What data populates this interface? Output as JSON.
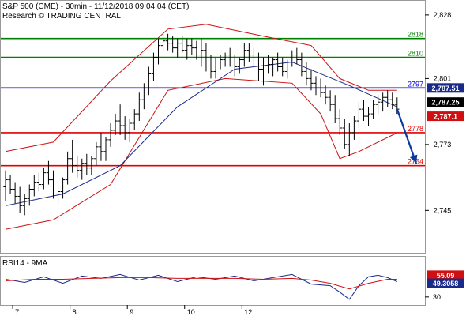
{
  "header": {
    "title": "S&P 500 (CME) - 30min - 11/12/2018 09:04:04 (CET)",
    "subtitle": "Research © TRADING CENTRAL"
  },
  "colors": {
    "support_resistance_red": "#e00000",
    "level_green": "#008000",
    "level_blue": "#0000dd",
    "moving_average_blue": "#1a2a8a",
    "bands_red": "#d01010",
    "price_bars": "#000000",
    "forecast_arrow": "#0a3aa0",
    "rsi_line": "#1a2a8a",
    "rsi_signal": "#d01010"
  },
  "chart_data": [
    {
      "type": "ohlc",
      "x_ticks": [
        "7",
        "8",
        "9",
        "10",
        "12"
      ],
      "y_ticks": [
        "2,828",
        "2,801",
        "2,773",
        "2,745"
      ],
      "ylim": [
        2727,
        2834
      ],
      "bars_per_day": 12,
      "ohlc_bars": [
        [
          2755,
          2762,
          2749,
          2758
        ],
        [
          2758,
          2760,
          2752,
          2754
        ],
        [
          2754,
          2757,
          2748,
          2751
        ],
        [
          2751,
          2755,
          2744,
          2747
        ],
        [
          2747,
          2752,
          2743,
          2750
        ],
        [
          2750,
          2756,
          2747,
          2754
        ],
        [
          2754,
          2760,
          2751,
          2757
        ],
        [
          2757,
          2761,
          2753,
          2756
        ],
        [
          2756,
          2763,
          2754,
          2761
        ],
        [
          2761,
          2766,
          2756,
          2758
        ],
        [
          2758,
          2762,
          2750,
          2752
        ],
        [
          2752,
          2756,
          2747,
          2753
        ],
        [
          2753,
          2759,
          2750,
          2758
        ],
        [
          2758,
          2770,
          2756,
          2767
        ],
        [
          2767,
          2775,
          2761,
          2764
        ],
        [
          2764,
          2768,
          2759,
          2762
        ],
        [
          2762,
          2767,
          2758,
          2765
        ],
        [
          2765,
          2769,
          2760,
          2763
        ],
        [
          2763,
          2768,
          2760,
          2767
        ],
        [
          2767,
          2774,
          2764,
          2772
        ],
        [
          2772,
          2778,
          2766,
          2770
        ],
        [
          2770,
          2776,
          2766,
          2775
        ],
        [
          2775,
          2782,
          2772,
          2779
        ],
        [
          2779,
          2786,
          2777,
          2783
        ],
        [
          2783,
          2790,
          2777,
          2781
        ],
        [
          2781,
          2785,
          2775,
          2778
        ],
        [
          2778,
          2784,
          2774,
          2782
        ],
        [
          2782,
          2788,
          2779,
          2786
        ],
        [
          2786,
          2795,
          2783,
          2792
        ],
        [
          2792,
          2799,
          2788,
          2797
        ],
        [
          2797,
          2806,
          2794,
          2803
        ],
        [
          2803,
          2812,
          2800,
          2810
        ],
        [
          2810,
          2818,
          2807,
          2815
        ],
        [
          2815,
          2820,
          2812,
          2817
        ],
        [
          2817,
          2820,
          2813,
          2816
        ],
        [
          2816,
          2819,
          2812,
          2814
        ],
        [
          2814,
          2818,
          2810,
          2816
        ],
        [
          2816,
          2819,
          2812,
          2813
        ],
        [
          2813,
          2818,
          2809,
          2815
        ],
        [
          2815,
          2818,
          2811,
          2814
        ],
        [
          2814,
          2817,
          2809,
          2811
        ],
        [
          2811,
          2818,
          2806,
          2813
        ],
        [
          2813,
          2816,
          2804,
          2808
        ],
        [
          2808,
          2811,
          2801,
          2804
        ],
        [
          2804,
          2810,
          2801,
          2808
        ],
        [
          2808,
          2811,
          2805,
          2809
        ],
        [
          2809,
          2812,
          2806,
          2811
        ],
        [
          2811,
          2814,
          2806,
          2808
        ],
        [
          2808,
          2811,
          2802,
          2806
        ],
        [
          2806,
          2810,
          2803,
          2809
        ],
        [
          2809,
          2816,
          2806,
          2813
        ],
        [
          2813,
          2816,
          2808,
          2811
        ],
        [
          2811,
          2814,
          2806,
          2808
        ],
        [
          2808,
          2812,
          2800,
          2805
        ],
        [
          2805,
          2810,
          2798,
          2808
        ],
        [
          2808,
          2811,
          2803,
          2807
        ],
        [
          2807,
          2810,
          2802,
          2809
        ],
        [
          2809,
          2812,
          2804,
          2806
        ],
        [
          2806,
          2810,
          2802,
          2804
        ],
        [
          2804,
          2809,
          2801,
          2808
        ],
        [
          2808,
          2813,
          2806,
          2811
        ],
        [
          2811,
          2814,
          2807,
          2809
        ],
        [
          2809,
          2812,
          2802,
          2804
        ],
        [
          2804,
          2808,
          2798,
          2801
        ],
        [
          2801,
          2805,
          2796,
          2799
        ],
        [
          2799,
          2802,
          2794,
          2797
        ],
        [
          2797,
          2801,
          2793,
          2795
        ],
        [
          2795,
          2798,
          2790,
          2793
        ],
        [
          2793,
          2796,
          2787,
          2790
        ],
        [
          2790,
          2794,
          2782,
          2784
        ],
        [
          2784,
          2788,
          2777,
          2780
        ],
        [
          2780,
          2784,
          2771,
          2773
        ],
        [
          2773,
          2782,
          2768,
          2778
        ],
        [
          2778,
          2785,
          2775,
          2783
        ],
        [
          2783,
          2791,
          2780,
          2788
        ],
        [
          2788,
          2792,
          2783,
          2785
        ],
        [
          2785,
          2789,
          2781,
          2786
        ],
        [
          2786,
          2792,
          2784,
          2790
        ],
        [
          2790,
          2794,
          2786,
          2791
        ],
        [
          2791,
          2795,
          2787,
          2793
        ],
        [
          2793,
          2796,
          2789,
          2792
        ],
        [
          2792,
          2795,
          2788,
          2790
        ],
        [
          2790,
          2793,
          2786,
          2788
        ]
      ],
      "moving_average": [
        [
          0,
          2747
        ],
        [
          12,
          2752
        ],
        [
          24,
          2764
        ],
        [
          36,
          2789
        ],
        [
          48,
          2805
        ],
        [
          60,
          2808
        ],
        [
          72,
          2798
        ],
        [
          82,
          2789
        ]
      ],
      "upper_band": [
        [
          0,
          2770
        ],
        [
          10,
          2774
        ],
        [
          22,
          2800
        ],
        [
          34,
          2822
        ],
        [
          42,
          2824
        ],
        [
          54,
          2819
        ],
        [
          64,
          2815
        ],
        [
          70,
          2801
        ],
        [
          76,
          2796
        ],
        [
          82,
          2796
        ]
      ],
      "lower_band": [
        [
          0,
          2737
        ],
        [
          10,
          2741
        ],
        [
          22,
          2756
        ],
        [
          34,
          2796
        ],
        [
          46,
          2801
        ],
        [
          60,
          2799
        ],
        [
          66,
          2786
        ],
        [
          70,
          2767
        ],
        [
          74,
          2770
        ],
        [
          82,
          2778
        ]
      ],
      "levels": [
        {
          "value": 2818,
          "label": "2818",
          "color": "#008000"
        },
        {
          "value": 2810,
          "label": "2810",
          "color": "#008000"
        },
        {
          "value": 2797,
          "label": "2797",
          "color": "#0000dd"
        },
        {
          "value": 2778,
          "label": "2778",
          "color": "#e00000"
        },
        {
          "value": 2764,
          "label": "2764",
          "color": "#e00000"
        }
      ],
      "forecast": {
        "from_bar": 82,
        "from_value": 2788,
        "to_bar": 86,
        "to_value": 2765
      },
      "price_tags": [
        {
          "label": "2,787.51",
          "value": 2797,
          "color": "#1a2a8a"
        },
        {
          "label": "2,787.25",
          "value": 2791,
          "color": "#000000"
        },
        {
          "label": "2,787.1",
          "value": 2785,
          "color": "#d01010"
        }
      ]
    },
    {
      "type": "line",
      "title": "RSI14 - 9MA",
      "y_ticks": [
        "30"
      ],
      "ylim": [
        20,
        80
      ],
      "series": [
        {
          "values": [
            [
              0,
              52
            ],
            [
              4,
              48
            ],
            [
              8,
              55
            ],
            [
              12,
              47
            ],
            [
              16,
              56
            ],
            [
              20,
              53
            ],
            [
              24,
              58
            ],
            [
              28,
              51
            ],
            [
              32,
              57
            ],
            [
              36,
              49
            ],
            [
              40,
              55
            ],
            [
              44,
              52
            ],
            [
              48,
              56
            ],
            [
              52,
              50
            ],
            [
              56,
              54
            ],
            [
              60,
              58
            ],
            [
              64,
              46
            ],
            [
              68,
              44
            ],
            [
              70,
              36
            ],
            [
              72,
              27
            ],
            [
              74,
              44
            ],
            [
              76,
              55
            ],
            [
              78,
              57
            ],
            [
              80,
              54
            ],
            [
              82,
              49
            ]
          ]
        },
        {
          "values": [
            [
              0,
              50
            ],
            [
              6,
              52
            ],
            [
              12,
              52
            ],
            [
              18,
              53
            ],
            [
              24,
              54
            ],
            [
              30,
              54
            ],
            [
              36,
              53
            ],
            [
              42,
              53
            ],
            [
              48,
              53
            ],
            [
              54,
              52
            ],
            [
              60,
              53
            ],
            [
              64,
              51
            ],
            [
              68,
              47
            ],
            [
              72,
              40
            ],
            [
              76,
              47
            ],
            [
              80,
              52
            ],
            [
              82,
              52
            ]
          ]
        }
      ],
      "price_tags": [
        {
          "label": "55.09",
          "value": 57,
          "color": "#d01010"
        },
        {
          "label": "49.3058",
          "value": 47,
          "color": "#1a2a8a"
        }
      ]
    }
  ]
}
